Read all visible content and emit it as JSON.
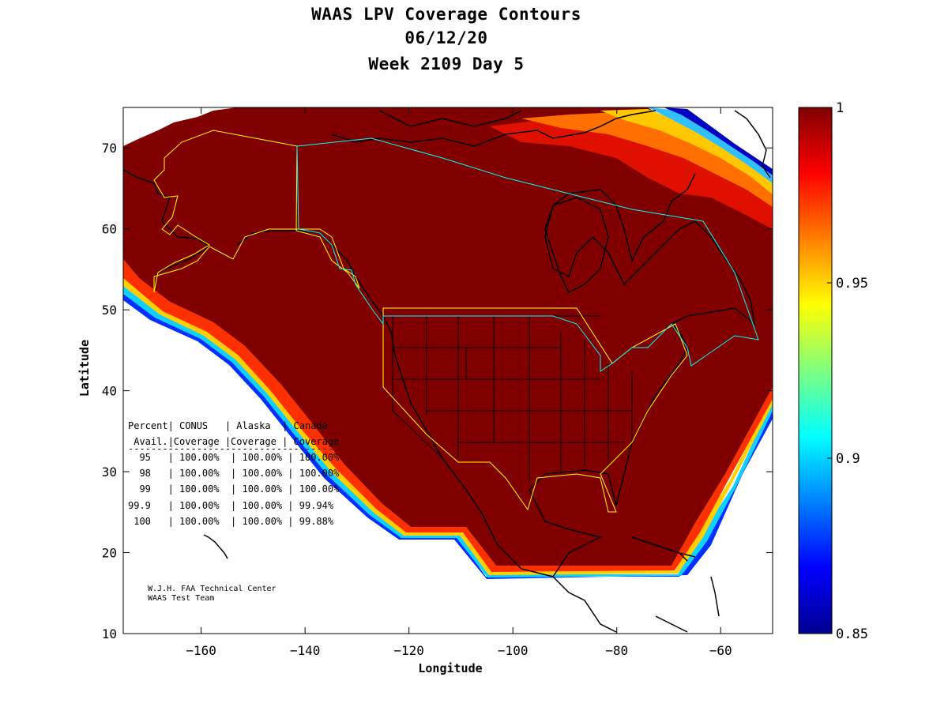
{
  "title": [
    "WAAS LPV Coverage Contours",
    "06/12/20",
    "Week 2109 Day 5"
  ],
  "axes": {
    "xlabel": "Longitude",
    "ylabel": "Latitude",
    "xlim": [
      -175,
      -50
    ],
    "ylim": [
      10,
      75
    ],
    "xticks": [
      -160,
      -140,
      -120,
      -100,
      -80,
      -60
    ],
    "yticks": [
      10,
      20,
      30,
      40,
      50,
      60,
      70
    ]
  },
  "colorbar": {
    "min": 0.85,
    "max": 1,
    "ticks": [
      "1",
      "0.95",
      "0.9",
      "0.85"
    ],
    "tick_values": [
      1,
      0.95,
      0.9,
      0.85
    ],
    "colormap": "jet"
  },
  "colors": {
    "full_coverage": "#800000",
    "ocean": "#ffffff",
    "coastline": "#000000",
    "conus_boundary": "#ffff00",
    "canada_boundary": "#00ffff"
  },
  "table": {
    "header1": "Percent| CONUS   | Alaska  | Canada",
    "header2": " Avail.|Coverage |Coverage | Coverage",
    "separator": "------------------------------------",
    "rows": [
      "  95   | 100.00%  | 100.00% | 100.00%",
      "  98   | 100.00%  | 100.00% | 100.00%",
      "  99   | 100.00%  | 100.00% | 100.00%",
      "99.9   | 100.00%  | 100.00% | 99.94%",
      " 100   | 100.00%  | 100.00% | 99.88%"
    ]
  },
  "credit": [
    "W.J.H. FAA Technical Center",
    "WAAS Test Team"
  ]
}
